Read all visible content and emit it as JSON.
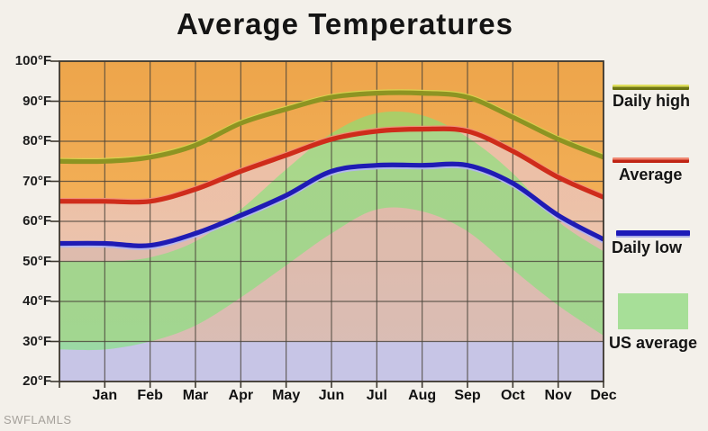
{
  "title": "Average Temperatures",
  "watermark": "SWFLAMLS",
  "legend": {
    "daily_high": "Daily high",
    "average": "Average",
    "daily_low": "Daily low",
    "us_average": "US average"
  },
  "chart_data": {
    "type": "line",
    "title": "Average Temperatures",
    "categories": [
      "Jan",
      "Feb",
      "Mar",
      "Apr",
      "May",
      "Jun",
      "Jul",
      "Aug",
      "Sep",
      "Oct",
      "Nov",
      "Dec"
    ],
    "ylim": [
      20,
      100
    ],
    "y_tick_labels": [
      "100°F",
      "90°F",
      "80°F",
      "70°F",
      "60°F",
      "50°F",
      "40°F",
      "30°F",
      "20°F"
    ],
    "y_tick_values": [
      100,
      90,
      80,
      70,
      60,
      50,
      40,
      30,
      20
    ],
    "grid": true,
    "legend_position": "right",
    "series": [
      {
        "name": "Daily high",
        "color": "#8d9422",
        "values": [
          75,
          76,
          79,
          84.5,
          88,
          91,
          92,
          92,
          91,
          86,
          80.5,
          76
        ]
      },
      {
        "name": "Average",
        "color": "#cf2c1b",
        "values": [
          65,
          65,
          68,
          72.5,
          76.5,
          80.5,
          82.5,
          83,
          82.5,
          77.5,
          71,
          66
        ]
      },
      {
        "name": "Daily low",
        "color": "#1f1bb4",
        "values": [
          54.5,
          54,
          57,
          61.5,
          66.5,
          72.5,
          74,
          74,
          74,
          69.5,
          61.5,
          55.5
        ]
      },
      {
        "name": "US average",
        "type": "band",
        "color": "#7dd860",
        "upper": [
          50,
          51,
          55,
          63,
          73,
          82,
          87,
          86.5,
          81,
          72,
          60,
          52.5
        ],
        "lower": [
          28,
          30,
          34,
          41,
          49,
          57,
          63,
          62.5,
          57.5,
          48,
          39,
          31.5
        ]
      }
    ],
    "background_colors": {
      "plot_orange": "#f2ae54",
      "below_average_pink": "#e8c3ac",
      "winter_band_lavender": "#c6c6ea",
      "us_band_green": "#a8d88d"
    }
  }
}
